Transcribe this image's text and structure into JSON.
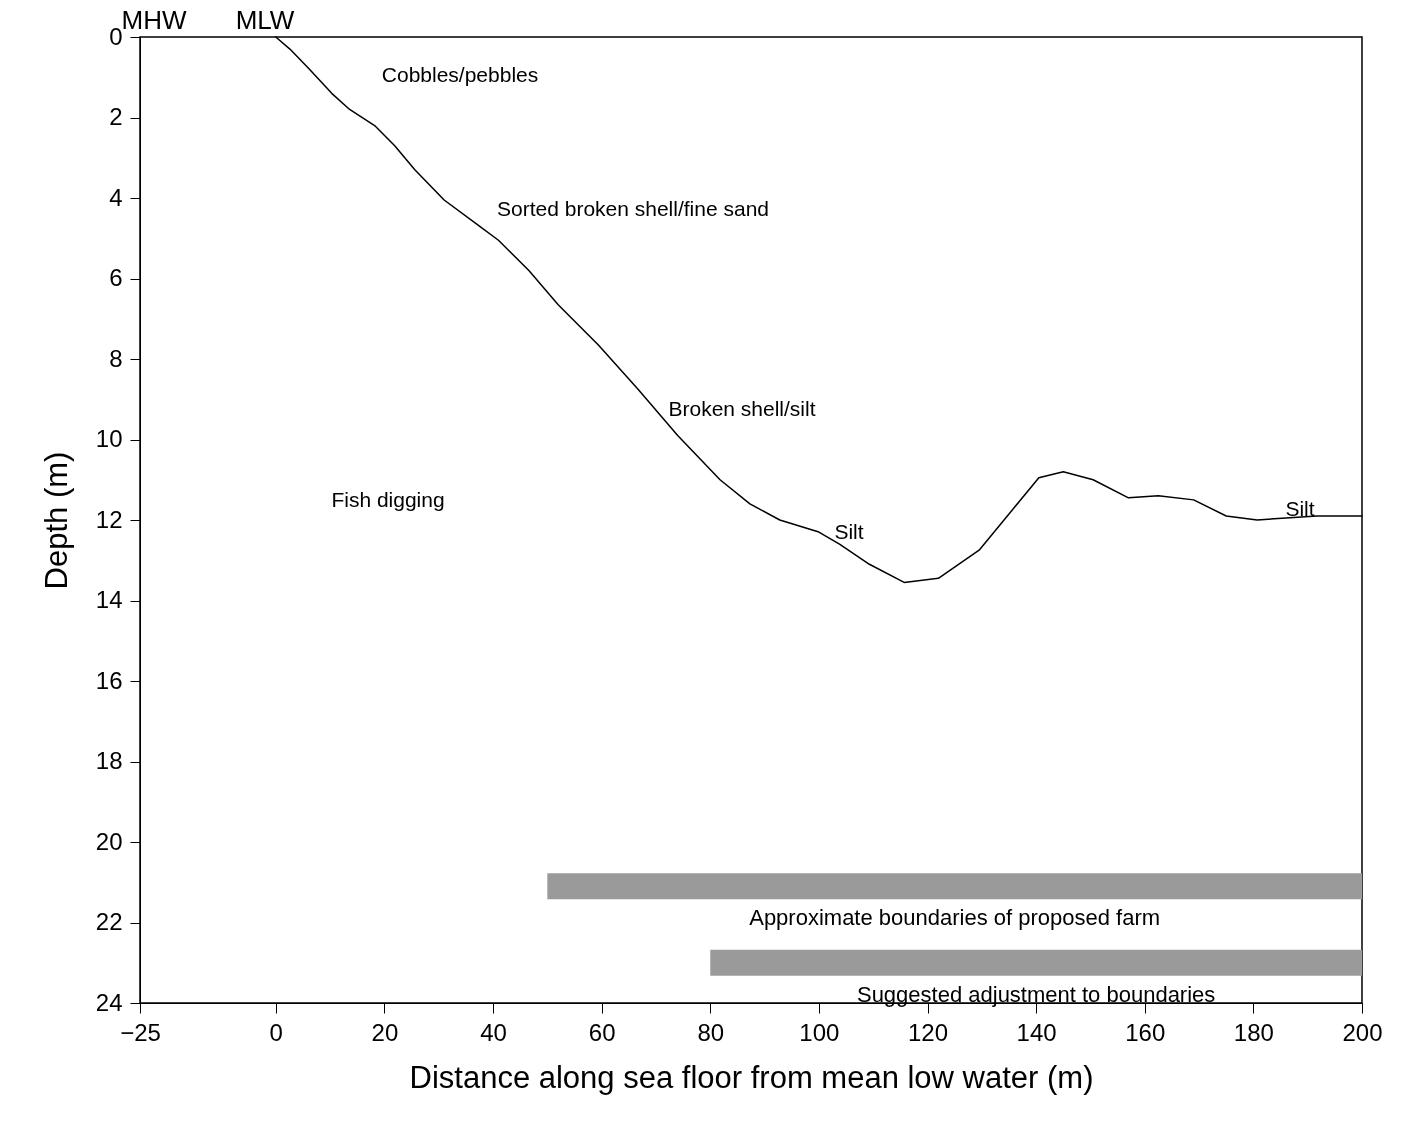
{
  "chart_data": {
    "type": "line",
    "xlabel": "Distance along sea floor from mean low water (m)",
    "ylabel": "Depth (m)",
    "series": [
      {
        "color": "#000000",
        "x": [
          0,
          2.6,
          6.2,
          10.3,
          13.6,
          18.2,
          21.9,
          25.6,
          31,
          37.5,
          41,
          46.6,
          52,
          59.4,
          66.7,
          74,
          81.8,
          87.3,
          92.8,
          100,
          103.8,
          109.3,
          115.7,
          122,
          129.5,
          135,
          140.5,
          145,
          150.5,
          157,
          162.5,
          169,
          175,
          180.7,
          186,
          191.7,
          200
        ],
        "values": [
          0,
          0.3,
          0.8,
          1.4,
          1.8,
          2.2,
          2.7,
          3.3,
          4.05,
          4.7,
          5.05,
          5.8,
          6.65,
          7.65,
          8.75,
          9.9,
          11,
          11.6,
          12,
          12.3,
          12.6,
          13.1,
          13.55,
          13.45,
          12.75,
          11.85,
          10.95,
          10.8,
          11,
          11.45,
          11.4,
          11.5,
          11.9,
          12,
          11.95,
          11.9,
          11.9
        ]
      },
      {
        "name": "Approximate boundaries of proposed farm",
        "color": "#9a9a9a",
        "x": [
          50,
          200
        ],
        "values": [
          21.1,
          21.1
        ]
      },
      {
        "name": "Suggested adjustment to boundaries",
        "color": "#9a9a9a",
        "x": [
          80,
          200
        ],
        "values": [
          23,
          23
        ]
      }
    ],
    "xlim": [
      -25,
      200
    ],
    "xticks": [
      -25,
      0,
      20,
      40,
      60,
      80,
      100,
      120,
      140,
      160,
      180,
      200
    ],
    "ylim": [
      24,
      0
    ],
    "yticks": [
      0,
      2,
      4,
      6,
      8,
      10,
      12,
      14,
      16,
      18,
      20,
      22,
      24
    ],
    "annotations": [
      "MHW",
      "MLW",
      "Cobbles/pebbles",
      "Sorted broken shell/fine sand",
      "Broken shell/silt",
      "Silt",
      "Silt",
      "Fish digging"
    ],
    "grid": false,
    "marker": "none",
    "line_style": "solid"
  }
}
